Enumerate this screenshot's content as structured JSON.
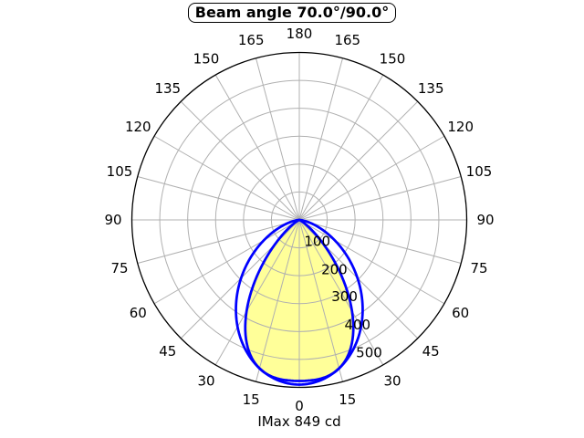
{
  "title": "Beam angle 70.0°/90.0°",
  "footer": "IMax 849 cd",
  "chart_data": {
    "type": "polar",
    "subtype": "luminous-intensity-distribution",
    "title": "Beam angle 70.0°/90.0°",
    "caption": "IMax 849 cd",
    "imax_cd": 849,
    "angle_tick_labels_deg": [
      0,
      15,
      30,
      45,
      60,
      75,
      90,
      105,
      120,
      135,
      150,
      165,
      180
    ],
    "angle_grid_step_deg": 15,
    "radial_tick_labels": [
      100,
      200,
      300,
      400,
      500
    ],
    "radial_grid_values": [
      100,
      200,
      300,
      400,
      500,
      600
    ],
    "radial_max": 600,
    "grid_on": true,
    "colors": {
      "grid": "#b0b0b0",
      "outline": "#000000",
      "curve": "#0000ff",
      "fill": "#ffff99",
      "background": "#ffffff",
      "text": "#000000"
    },
    "series": [
      {
        "name": "beam-70",
        "beam_angle_deg": 70.0,
        "peak_chart_value": 577,
        "model": "flat_gaussian",
        "exponent": 3.2,
        "filled": true
      },
      {
        "name": "beam-90",
        "beam_angle_deg": 90.0,
        "peak_chart_value": 590,
        "model": "cosine_power",
        "exponent": 2.0,
        "filled": false
      }
    ]
  }
}
